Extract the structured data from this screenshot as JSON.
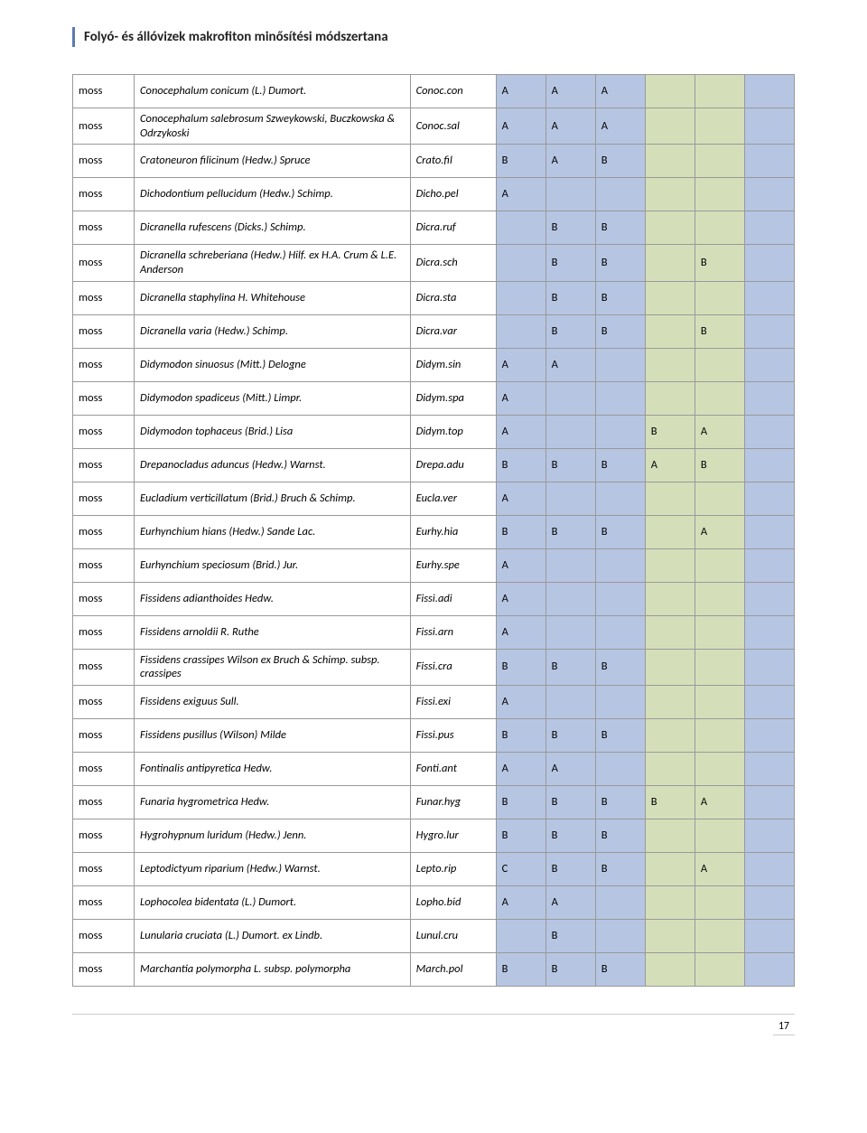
{
  "header": {
    "title": "Folyó- és állóvizek makrofiton minősítési módszertana"
  },
  "colors": {
    "blue": "#b6c5e2",
    "green": "#d4dfba",
    "white": "#ffffff",
    "accent": "#5b7ab0"
  },
  "columns": 9,
  "col_color": [
    "white",
    "white",
    "white",
    "blue",
    "blue",
    "blue",
    "green",
    "green",
    "blue"
  ],
  "page_number": "17",
  "rows": [
    {
      "type": "moss",
      "name": "Conocephalum conicum (L.) Dumort.",
      "code": "Conoc.con",
      "v": [
        "A",
        "A",
        "A",
        "",
        "",
        ""
      ]
    },
    {
      "type": "moss",
      "name": "Conocephalum salebrosum Szweykowski, Buczkowska & Odrzykoski",
      "code": "Conoc.sal",
      "v": [
        "A",
        "A",
        "A",
        "",
        "",
        ""
      ]
    },
    {
      "type": "moss",
      "name": "Cratoneuron filicinum (Hedw.) Spruce",
      "code": "Crato.fil",
      "v": [
        "B",
        "A",
        "B",
        "",
        "",
        ""
      ]
    },
    {
      "type": "moss",
      "name": "Dichodontium pellucidum (Hedw.) Schimp.",
      "code": "Dicho.pel",
      "v": [
        "A",
        "",
        "",
        "",
        "",
        ""
      ]
    },
    {
      "type": "moss",
      "name": "Dicranella rufescens (Dicks.) Schimp.",
      "code": "Dicra.ruf",
      "v": [
        "",
        "B",
        "B",
        "",
        "",
        ""
      ]
    },
    {
      "type": "moss",
      "name": "Dicranella schreberiana (Hedw.) Hilf. ex H.A. Crum & L.E. Anderson",
      "code": "Dicra.sch",
      "v": [
        "",
        "B",
        "B",
        "",
        "B",
        ""
      ]
    },
    {
      "type": "moss",
      "name": "Dicranella staphylina H. Whitehouse",
      "code": "Dicra.sta",
      "v": [
        "",
        "B",
        "B",
        "",
        "",
        ""
      ]
    },
    {
      "type": "moss",
      "name": "Dicranella varia (Hedw.) Schimp.",
      "code": "Dicra.var",
      "v": [
        "",
        "B",
        "B",
        "",
        "B",
        ""
      ]
    },
    {
      "type": "moss",
      "name": "Didymodon sinuosus (Mitt.) Delogne",
      "code": "Didym.sin",
      "v": [
        "A",
        "A",
        "",
        "",
        "",
        ""
      ]
    },
    {
      "type": "moss",
      "name": "Didymodon spadiceus (Mitt.) Limpr.",
      "code": "Didym.spa",
      "v": [
        "A",
        "",
        "",
        "",
        "",
        ""
      ]
    },
    {
      "type": "moss",
      "name": "Didymodon tophaceus (Brid.) Lisa",
      "code": "Didym.top",
      "v": [
        "A",
        "",
        "",
        "B",
        "A",
        ""
      ]
    },
    {
      "type": "moss",
      "name": "Drepanocladus aduncus (Hedw.) Warnst.",
      "code": "Drepa.adu",
      "v": [
        "B",
        "B",
        "B",
        "A",
        "B",
        ""
      ]
    },
    {
      "type": "moss",
      "name": "Eucladium verticillatum (Brid.) Bruch & Schimp.",
      "code": "Eucla.ver",
      "v": [
        "A",
        "",
        "",
        "",
        "",
        ""
      ]
    },
    {
      "type": "moss",
      "name": "Eurhynchium hians (Hedw.) Sande Lac.",
      "code": "Eurhy.hia",
      "v": [
        "B",
        "B",
        "B",
        "",
        "A",
        ""
      ]
    },
    {
      "type": "moss",
      "name": "Eurhynchium speciosum (Brid.) Jur.",
      "code": "Eurhy.spe",
      "v": [
        "A",
        "",
        "",
        "",
        "",
        ""
      ]
    },
    {
      "type": "moss",
      "name": "Fissidens adianthoides Hedw.",
      "code": "Fissi.adi",
      "v": [
        "A",
        "",
        "",
        "",
        "",
        ""
      ]
    },
    {
      "type": "moss",
      "name": "Fissidens arnoldii R. Ruthe",
      "code": "Fissi.arn",
      "v": [
        "A",
        "",
        "",
        "",
        "",
        ""
      ]
    },
    {
      "type": "moss",
      "name": "Fissidens crassipes Wilson ex Bruch & Schimp. subsp. crassipes",
      "code": "Fissi.cra",
      "v": [
        "B",
        "B",
        "B",
        "",
        "",
        ""
      ]
    },
    {
      "type": "moss",
      "name": "Fissidens exiguus Sull.",
      "code": "Fissi.exi",
      "v": [
        "A",
        "",
        "",
        "",
        "",
        ""
      ]
    },
    {
      "type": "moss",
      "name": "Fissidens pusillus (Wilson) Milde",
      "code": "Fissi.pus",
      "v": [
        "B",
        "B",
        "B",
        "",
        "",
        ""
      ]
    },
    {
      "type": "moss",
      "name": "Fontinalis antipyretica Hedw.",
      "code": "Fonti.ant",
      "v": [
        "A",
        "A",
        "",
        "",
        "",
        ""
      ]
    },
    {
      "type": "moss",
      "name": "Funaria hygrometrica Hedw.",
      "code": "Funar.hyg",
      "v": [
        "B",
        "B",
        "B",
        "B",
        "A",
        ""
      ]
    },
    {
      "type": "moss",
      "name": "Hygrohypnum luridum (Hedw.) Jenn.",
      "code": "Hygro.lur",
      "v": [
        "B",
        "B",
        "B",
        "",
        "",
        ""
      ]
    },
    {
      "type": "moss",
      "name": "Leptodictyum riparium (Hedw.) Warnst.",
      "code": "Lepto.rip",
      "v": [
        "C",
        "B",
        "B",
        "",
        "A",
        ""
      ]
    },
    {
      "type": "moss",
      "name": "Lophocolea bidentata (L.) Dumort.",
      "code": "Lopho.bid",
      "v": [
        "A",
        "A",
        "",
        "",
        "",
        ""
      ]
    },
    {
      "type": "moss",
      "name": "Lunularia cruciata (L.) Dumort. ex Lindb.",
      "code": "Lunul.cru",
      "v": [
        "",
        "B",
        "",
        "",
        "",
        ""
      ]
    },
    {
      "type": "moss",
      "name": "Marchantia polymorpha L. subsp. polymorpha",
      "code": "March.pol",
      "v": [
        "B",
        "B",
        "B",
        "",
        "",
        ""
      ]
    }
  ]
}
